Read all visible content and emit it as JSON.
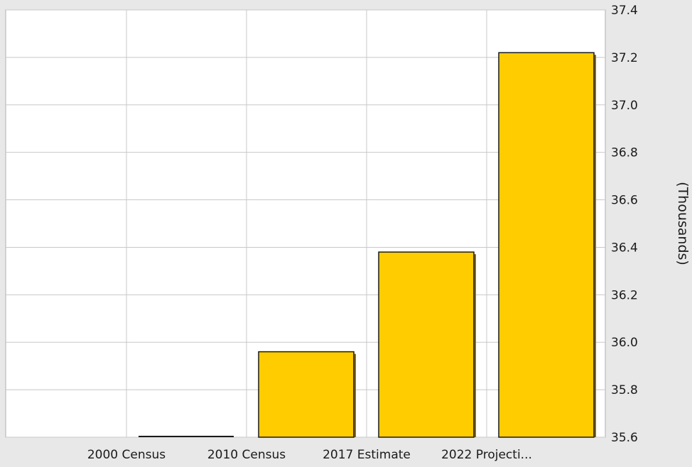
{
  "chart_data": {
    "type": "bar",
    "categories": [
      "2000 Census",
      "2010 Census",
      "2017 Estimate",
      "2022 Projecti..."
    ],
    "values": [
      35.6,
      35.96,
      36.38,
      37.22
    ],
    "ylabel": "(Thousands)",
    "ylim": [
      35.6,
      37.4
    ],
    "yticks": [
      "35.6",
      "35.8",
      "36.0",
      "36.2",
      "36.4",
      "36.6",
      "36.8",
      "37.0",
      "37.2",
      "37.4"
    ],
    "y_axis_position": "right",
    "grid": true,
    "bar_color": "#FFCC00",
    "bar_shadow_color": "#8a6a00",
    "plot_background": "#ffffff",
    "page_background": "#e8e8e8"
  }
}
